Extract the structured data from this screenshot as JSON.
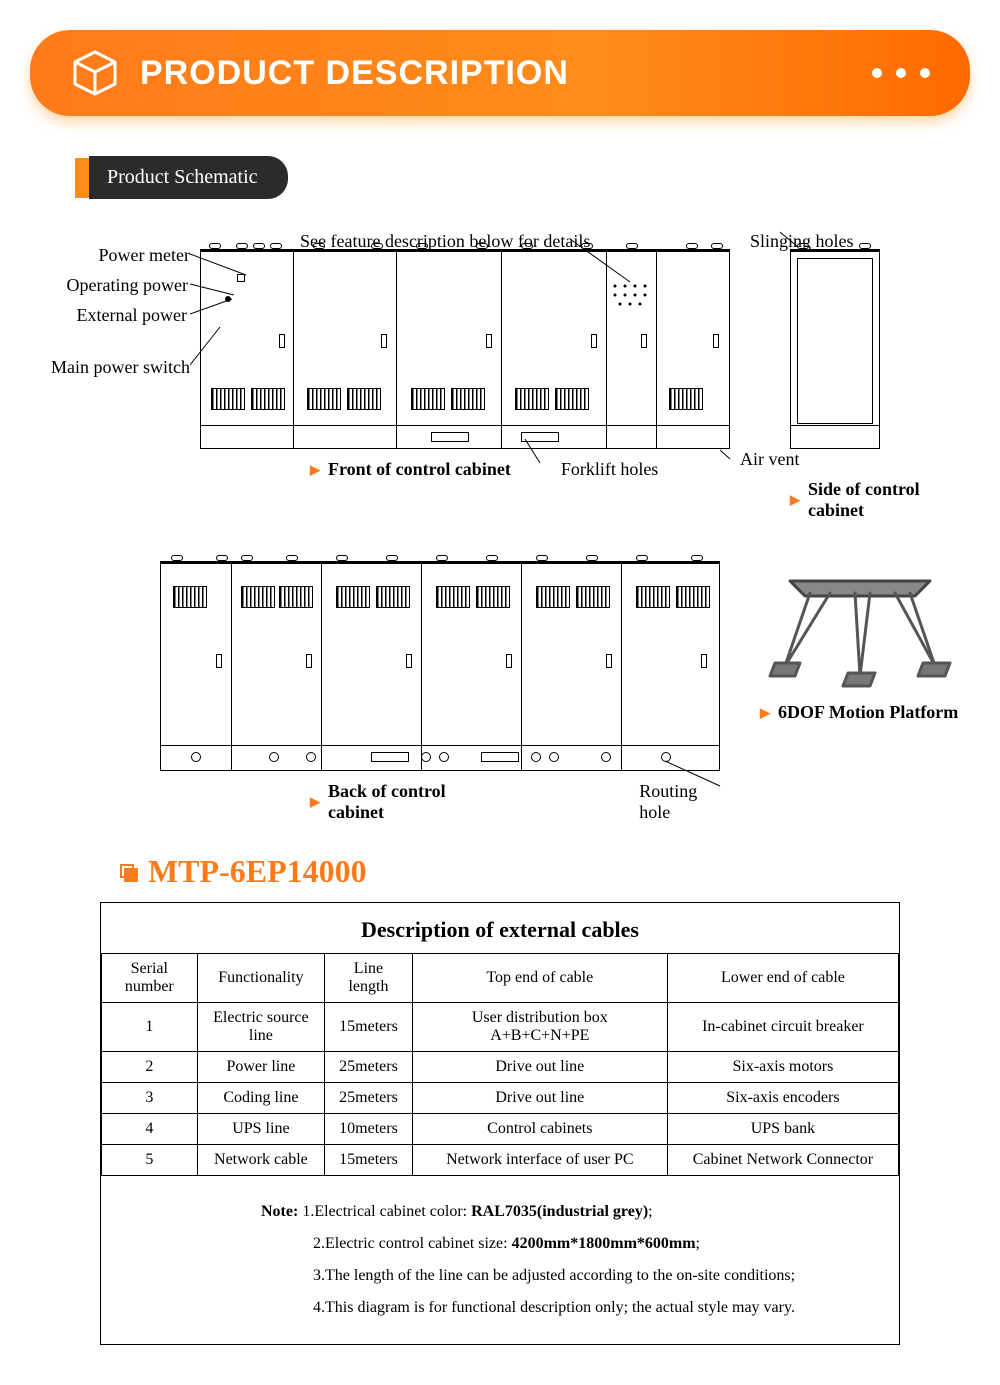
{
  "banner": {
    "title": "PRODUCT DESCRIPTION"
  },
  "section_tab": "Product Schematic",
  "callouts": {
    "power_meter": "Power meter",
    "operating_power": "Operating power",
    "external_power": "External power",
    "main_power_switch": "Main power switch",
    "see_feature": "See feature description below for details",
    "slinging_holes": "Slinging holes",
    "air_vent": "Air vent",
    "forklift_holes": "Forklift holes",
    "routing_hole": "Routing hole"
  },
  "view_labels": {
    "front": "Front of control cabinet",
    "side": "Side of control cabinet",
    "back": "Back of control cabinet",
    "platform": "6DOF Motion Platform"
  },
  "model": "MTP-6EP14000",
  "table": {
    "title": "Description of external cables",
    "columns": [
      "Serial number",
      "Functionality",
      "Line length",
      "Top end of cable",
      "Lower end of cable"
    ],
    "col_widths_pct": [
      12,
      16,
      11,
      32,
      29
    ],
    "rows": [
      [
        "1",
        "Electric source line",
        "15meters",
        "User distribution box A+B+C+N+PE",
        "In-cabinet circuit breaker"
      ],
      [
        "2",
        "Power line",
        "25meters",
        "Drive out line",
        "Six-axis motors"
      ],
      [
        "3",
        "Coding line",
        "25meters",
        "Drive out line",
        "Six-axis encoders"
      ],
      [
        "4",
        "UPS line",
        "10meters",
        "Control cabinets",
        "UPS bank"
      ],
      [
        "5",
        "Network cable",
        "15meters",
        "Network interface of user PC",
        "Cabinet Network Connector"
      ]
    ]
  },
  "notes": {
    "lead": "Note:",
    "items": [
      {
        "prefix": "1.Electrical cabinet color: ",
        "bold": "RAL7035(industrial grey)",
        "suffix": ";"
      },
      {
        "prefix": "2.Electric control cabinet size: ",
        "bold": "4200mm*1800mm*600mm",
        "suffix": ";"
      },
      {
        "prefix": "3.The length of the line can be adjusted according to the on-site conditions;",
        "bold": "",
        "suffix": ""
      },
      {
        "prefix": "4.This diagram is for functional description only; the actual style may vary.",
        "bold": "",
        "suffix": ""
      }
    ]
  },
  "colors": {
    "accent": "#ff7a1a",
    "banner_gradient_start": "#ff7a1a",
    "banner_gradient_end": "#ff6a00",
    "tab_bg": "#2b2b2b",
    "line": "#000000",
    "background": "#ffffff"
  }
}
